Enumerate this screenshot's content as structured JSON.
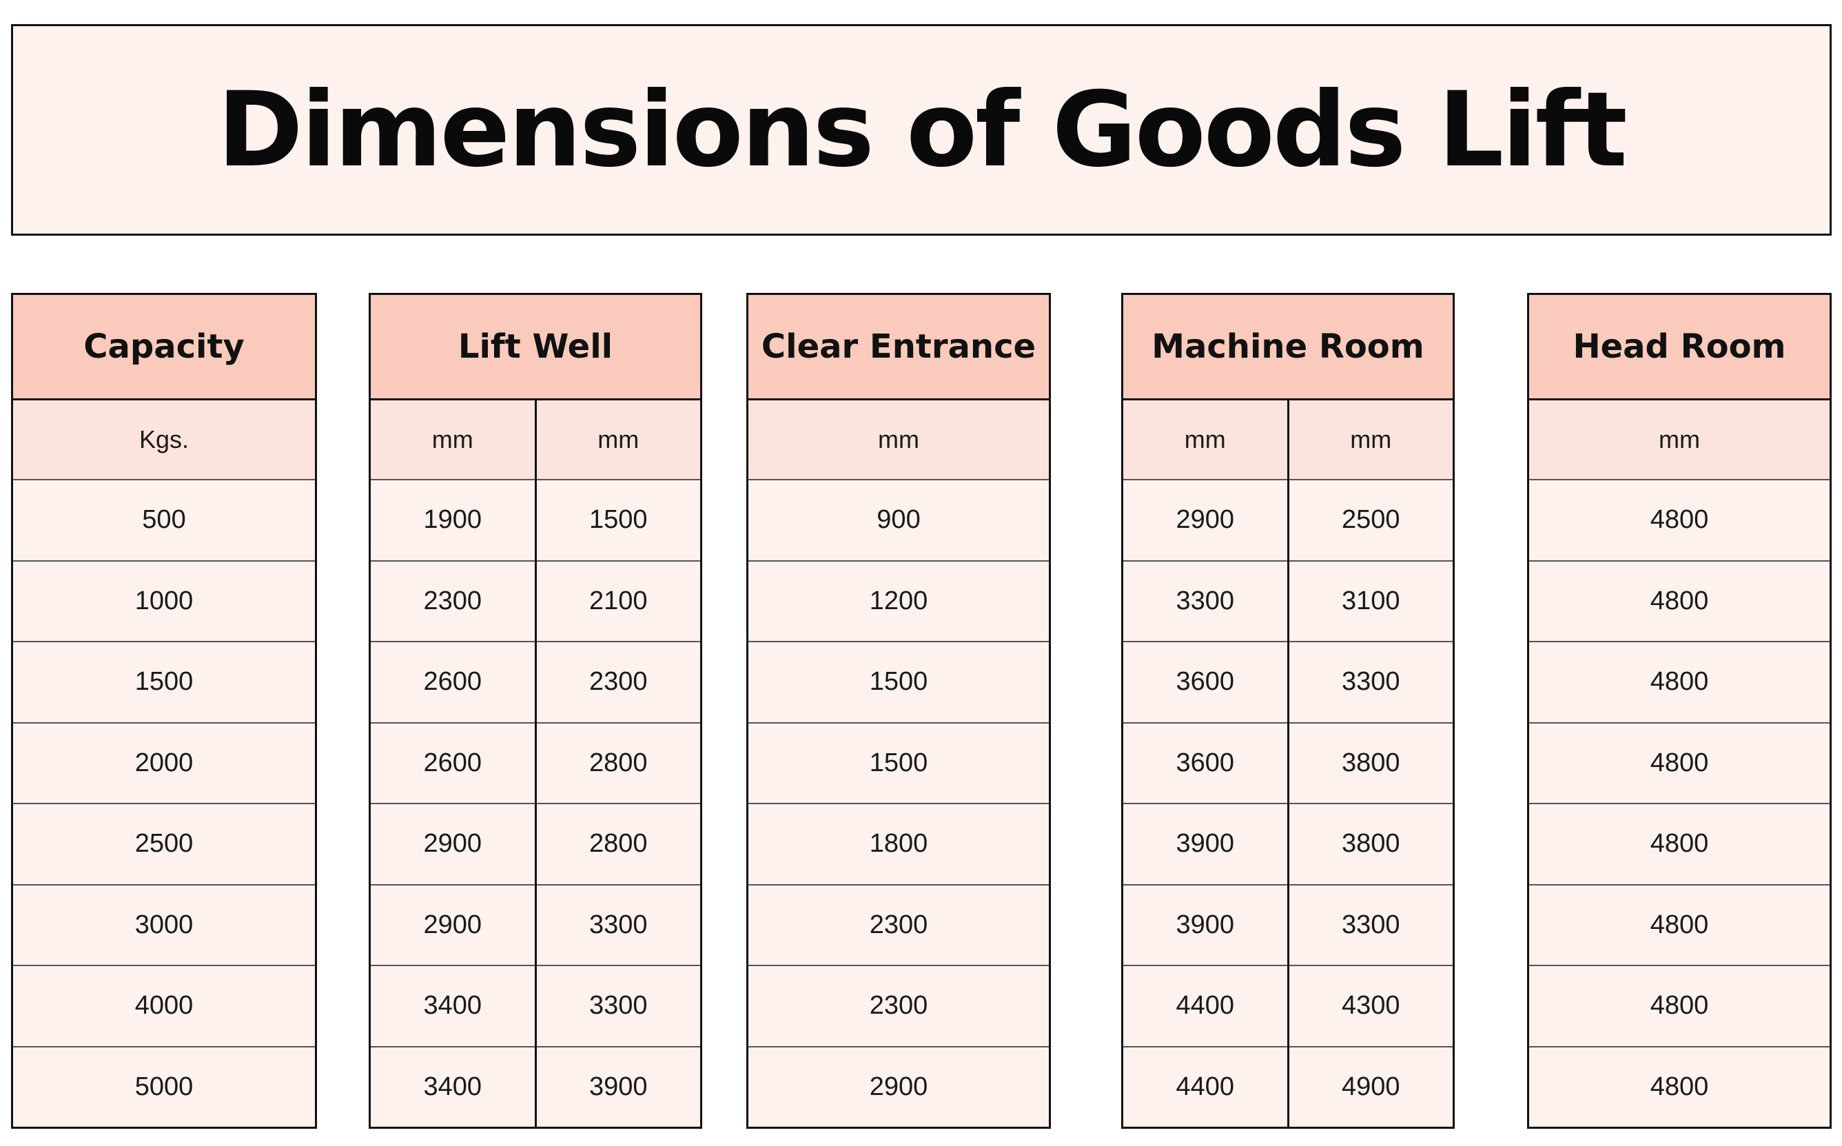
{
  "title": "Dimensions of Goods Lift",
  "tables": {
    "capacity": {
      "header": "Capacity",
      "columns": [
        {
          "unit": "Kgs.",
          "values": [
            "500",
            "1000",
            "1500",
            "2000",
            "2500",
            "3000",
            "4000",
            "5000"
          ]
        }
      ]
    },
    "lift_well": {
      "header": "Lift Well",
      "columns": [
        {
          "unit": "mm",
          "values": [
            "1900",
            "2300",
            "2600",
            "2600",
            "2900",
            "2900",
            "3400",
            "3400"
          ]
        },
        {
          "unit": "mm",
          "values": [
            "1500",
            "2100",
            "2300",
            "2800",
            "2800",
            "3300",
            "3300",
            "3900"
          ]
        }
      ]
    },
    "clear_entrance": {
      "header": "Clear Entrance",
      "columns": [
        {
          "unit": "mm",
          "values": [
            "900",
            "1200",
            "1500",
            "1500",
            "1800",
            "2300",
            "2300",
            "2900"
          ]
        }
      ]
    },
    "machine_room": {
      "header": "Machine Room",
      "columns": [
        {
          "unit": "mm",
          "values": [
            "2900",
            "3300",
            "3600",
            "3600",
            "3900",
            "3900",
            "4400",
            "4400"
          ]
        },
        {
          "unit": "mm",
          "values": [
            "2500",
            "3100",
            "3300",
            "3800",
            "3800",
            "3300",
            "4300",
            "4900"
          ]
        }
      ]
    },
    "head_room": {
      "header": "Head Room",
      "columns": [
        {
          "unit": "mm",
          "values": [
            "4800",
            "4800",
            "4800",
            "4800",
            "4800",
            "4800",
            "4800",
            "4800"
          ]
        }
      ]
    }
  },
  "colors": {
    "header_fill": "#facbbd",
    "unit_fill": "#fbe4dd",
    "cell_fill": "#fdf2ee",
    "border": "#111111"
  }
}
